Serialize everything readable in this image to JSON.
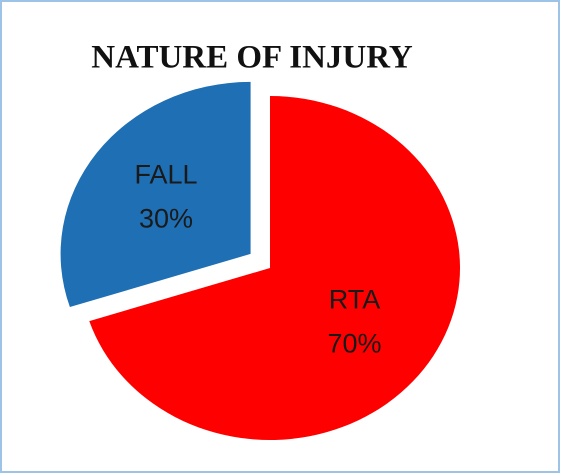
{
  "chart_data": {
    "type": "pie",
    "title": "NATURE OF INJURY",
    "categories": [
      "RTA",
      "FALL"
    ],
    "values": [
      70,
      30
    ],
    "value_labels": [
      "70%",
      "30%"
    ],
    "colors": [
      "#ff0000",
      "#1f6fb4"
    ]
  }
}
